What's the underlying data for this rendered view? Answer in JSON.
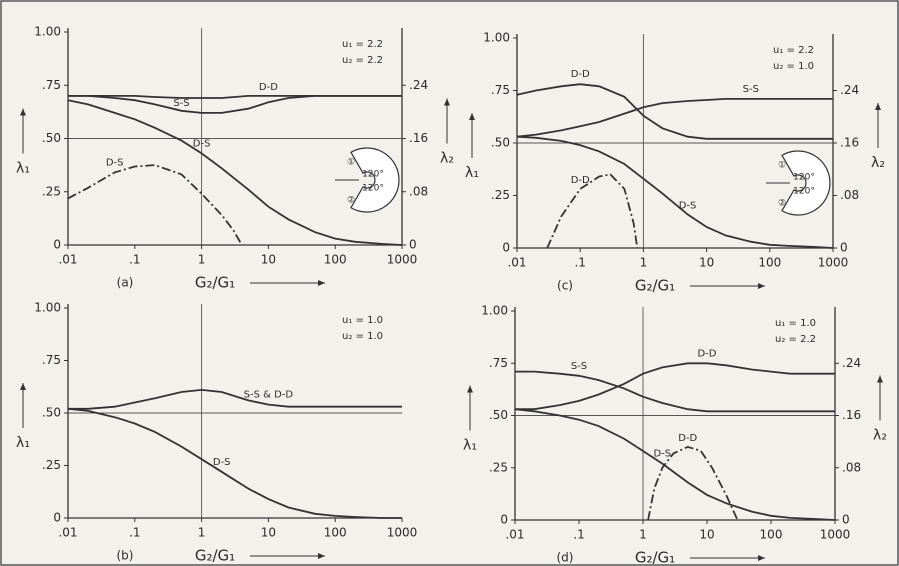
{
  "chart_data": [
    {
      "type": "line",
      "caption": "(a)",
      "x_label": "G₂/G₁",
      "y_label": "λ₁",
      "y2_label": "λ₂",
      "annotations": [
        "u₁ = 2.2",
        "u₂ = 2.2"
      ],
      "inset_labels": [
        "①",
        "120°",
        "120°",
        "②"
      ],
      "x_scale": "log",
      "xlim": [
        0.01,
        1000
      ],
      "xticks": [
        {
          "value": 0.01,
          "label": ".01"
        },
        {
          "value": 0.1,
          "label": ".1"
        },
        1,
        10,
        100,
        1000
      ],
      "ylim": [
        0,
        1
      ],
      "yticks": [
        0,
        {
          "value": 0.25,
          "label": ".25"
        },
        {
          "value": 0.5,
          "label": ".50"
        },
        {
          "value": 0.75,
          "label": ".75"
        },
        {
          "value": 1,
          "label": "1.00"
        }
      ],
      "y2lim": [
        0,
        0.32
      ],
      "y2ticks": [
        0,
        {
          "value": 0.08,
          "label": ".08"
        },
        {
          "value": 0.16,
          "label": ".16"
        },
        {
          "value": 0.24,
          "label": ".24"
        }
      ],
      "xgrid": [
        1
      ],
      "ygrid": [
        0.5
      ],
      "x": [
        0.01,
        0.02,
        0.05,
        0.1,
        0.2,
        0.5,
        1,
        2,
        5,
        10,
        20,
        50,
        100,
        200,
        500,
        1000
      ],
      "series": [
        {
          "name": "D-D",
          "color": "#333333",
          "style": "solid",
          "values": [
            0.7,
            0.7,
            0.7,
            0.7,
            0.695,
            0.69,
            0.69,
            0.69,
            0.7,
            0.7,
            0.7,
            0.7,
            0.7,
            0.7,
            0.7,
            0.7
          ]
        },
        {
          "name": "S-S",
          "color": "#333333",
          "style": "solid",
          "values": [
            0.7,
            0.7,
            0.69,
            0.68,
            0.66,
            0.63,
            0.62,
            0.62,
            0.64,
            0.67,
            0.69,
            0.7,
            0.7,
            0.7,
            0.7,
            0.7
          ]
        },
        {
          "name": "D-S",
          "color": "#333333",
          "style": "solid",
          "values": [
            0.68,
            0.66,
            0.62,
            0.59,
            0.55,
            0.49,
            0.43,
            0.36,
            0.26,
            0.18,
            0.12,
            0.06,
            0.03,
            0.015,
            0.005,
            0
          ]
        },
        {
          "name": "D-S",
          "color": "#333333",
          "style": "dashdot",
          "axis": "y2",
          "x": [
            0.01,
            0.02,
            0.05,
            0.1,
            0.2,
            0.5,
            1,
            2,
            3,
            4
          ],
          "values": [
            0.07,
            0.086,
            0.109,
            0.118,
            0.12,
            0.106,
            0.077,
            0.045,
            0.022,
            0
          ]
        }
      ]
    },
    {
      "type": "line",
      "caption": "(b)",
      "x_label": "G₂/G₁",
      "y_label": "λ₁",
      "annotations": [
        "u₁ = 1.0",
        "u₂ = 1.0"
      ],
      "x_scale": "log",
      "xlim": [
        0.01,
        1000
      ],
      "xticks": [
        {
          "value": 0.01,
          "label": ".01"
        },
        {
          "value": 0.1,
          "label": ".1"
        },
        1,
        10,
        100,
        1000
      ],
      "ylim": [
        0,
        1
      ],
      "yticks": [
        0,
        {
          "value": 0.25,
          "label": ".25"
        },
        {
          "value": 0.5,
          "label": ".50"
        },
        {
          "value": 0.75,
          "label": ".75"
        },
        {
          "value": 1,
          "label": "1.00"
        }
      ],
      "xgrid": [
        1
      ],
      "ygrid": [
        0.5
      ],
      "x": [
        0.01,
        0.02,
        0.05,
        0.1,
        0.2,
        0.5,
        1,
        2,
        5,
        10,
        20,
        50,
        100,
        200,
        500,
        1000
      ],
      "series": [
        {
          "name": "S-S & D-D",
          "color": "#333333",
          "style": "solid",
          "values": [
            0.52,
            0.52,
            0.53,
            0.55,
            0.57,
            0.6,
            0.61,
            0.6,
            0.56,
            0.54,
            0.53,
            0.53,
            0.53,
            0.53,
            0.53,
            0.53
          ]
        },
        {
          "name": "D-S",
          "color": "#333333",
          "style": "solid",
          "values": [
            0.52,
            0.51,
            0.48,
            0.45,
            0.41,
            0.34,
            0.28,
            0.22,
            0.14,
            0.09,
            0.05,
            0.02,
            0.01,
            0.005,
            0,
            0
          ]
        }
      ]
    },
    {
      "type": "line",
      "caption": "(c)",
      "x_label": "G₂/G₁",
      "y_label": "λ₁",
      "y2_label": "λ₂",
      "annotations": [
        "u₁ = 2.2",
        "u₂ = 1.0"
      ],
      "inset_labels": [
        "①",
        "120°",
        "120°",
        "②"
      ],
      "x_scale": "log",
      "xlim": [
        0.01,
        1000
      ],
      "xticks": [
        {
          "value": 0.01,
          "label": ".01"
        },
        {
          "value": 0.1,
          "label": ".1"
        },
        1,
        10,
        100,
        1000
      ],
      "ylim": [
        0,
        1
      ],
      "yticks": [
        0,
        {
          "value": 0.25,
          "label": ".25"
        },
        {
          "value": 0.5,
          "label": ".50"
        },
        {
          "value": 0.75,
          "label": ".75"
        },
        {
          "value": 1,
          "label": "1.00"
        }
      ],
      "y2lim": [
        0,
        0.32
      ],
      "y2ticks": [
        0,
        {
          "value": 0.08,
          "label": ".08"
        },
        {
          "value": 0.16,
          "label": ".16"
        },
        {
          "value": 0.24,
          "label": ".24"
        }
      ],
      "xgrid": [
        1
      ],
      "ygrid": [
        0.5
      ],
      "x": [
        0.01,
        0.02,
        0.05,
        0.1,
        0.2,
        0.5,
        1,
        2,
        5,
        10,
        20,
        50,
        100,
        200,
        500,
        1000
      ],
      "series": [
        {
          "name": "D-D",
          "color": "#333333",
          "style": "solid",
          "values": [
            0.73,
            0.75,
            0.77,
            0.78,
            0.77,
            0.72,
            0.63,
            0.57,
            0.53,
            0.52,
            0.52,
            0.52,
            0.52,
            0.52,
            0.52,
            0.52
          ]
        },
        {
          "name": "S-S",
          "color": "#333333",
          "style": "solid",
          "values": [
            0.53,
            0.54,
            0.56,
            0.58,
            0.6,
            0.64,
            0.67,
            0.69,
            0.7,
            0.705,
            0.71,
            0.71,
            0.71,
            0.71,
            0.71,
            0.71
          ]
        },
        {
          "name": "D-S",
          "color": "#333333",
          "style": "solid",
          "values": [
            0.53,
            0.525,
            0.51,
            0.49,
            0.46,
            0.4,
            0.33,
            0.26,
            0.16,
            0.1,
            0.06,
            0.03,
            0.015,
            0.01,
            0.005,
            0
          ]
        },
        {
          "name": "D-D",
          "color": "#333333",
          "style": "dashdot",
          "axis": "y2",
          "x": [
            0.03,
            0.05,
            0.1,
            0.2,
            0.3,
            0.5,
            0.7,
            0.8
          ],
          "values": [
            0,
            0.048,
            0.09,
            0.109,
            0.112,
            0.09,
            0.038,
            0
          ]
        }
      ]
    },
    {
      "type": "line",
      "caption": "(d)",
      "x_label": "G₂/G₁",
      "y_label": "λ₁",
      "y2_label": "λ₂",
      "annotations": [
        "u₁ = 1.0",
        "u₂ = 2.2"
      ],
      "x_scale": "log",
      "xlim": [
        0.01,
        1000
      ],
      "xticks": [
        {
          "value": 0.01,
          "label": ".01"
        },
        {
          "value": 0.1,
          "label": ".1"
        },
        1,
        10,
        100,
        1000
      ],
      "ylim": [
        0,
        1
      ],
      "yticks": [
        0,
        {
          "value": 0.25,
          "label": ".25"
        },
        {
          "value": 0.5,
          "label": ".50"
        },
        {
          "value": 0.75,
          "label": ".75"
        },
        {
          "value": 1,
          "label": "1.00"
        }
      ],
      "y2lim": [
        0,
        0.32
      ],
      "y2ticks": [
        0,
        {
          "value": 0.08,
          "label": ".08"
        },
        {
          "value": 0.16,
          "label": ".16"
        },
        {
          "value": 0.24,
          "label": ".24"
        }
      ],
      "xgrid": [
        1
      ],
      "ygrid": [
        0.5
      ],
      "x": [
        0.01,
        0.02,
        0.05,
        0.1,
        0.2,
        0.5,
        1,
        2,
        5,
        10,
        20,
        50,
        100,
        200,
        500,
        1000
      ],
      "series": [
        {
          "name": "S-S",
          "color": "#333333",
          "style": "solid",
          "values": [
            0.71,
            0.71,
            0.7,
            0.69,
            0.67,
            0.63,
            0.59,
            0.56,
            0.53,
            0.52,
            0.52,
            0.52,
            0.52,
            0.52,
            0.52,
            0.52
          ]
        },
        {
          "name": "D-D",
          "color": "#333333",
          "style": "solid",
          "values": [
            0.53,
            0.53,
            0.55,
            0.57,
            0.6,
            0.65,
            0.7,
            0.73,
            0.75,
            0.75,
            0.74,
            0.72,
            0.71,
            0.7,
            0.7,
            0.7
          ]
        },
        {
          "name": "D-S",
          "color": "#333333",
          "style": "solid",
          "values": [
            0.53,
            0.52,
            0.5,
            0.48,
            0.45,
            0.39,
            0.33,
            0.27,
            0.18,
            0.12,
            0.08,
            0.04,
            0.02,
            0.01,
            0.005,
            0
          ]
        },
        {
          "name": "D-D",
          "color": "#333333",
          "style": "dashdot",
          "axis": "y2",
          "x": [
            1.2,
            1.5,
            2,
            3,
            5,
            8,
            12,
            20,
            30
          ],
          "values": [
            0,
            0.048,
            0.08,
            0.102,
            0.112,
            0.106,
            0.08,
            0.038,
            0
          ]
        }
      ]
    }
  ]
}
